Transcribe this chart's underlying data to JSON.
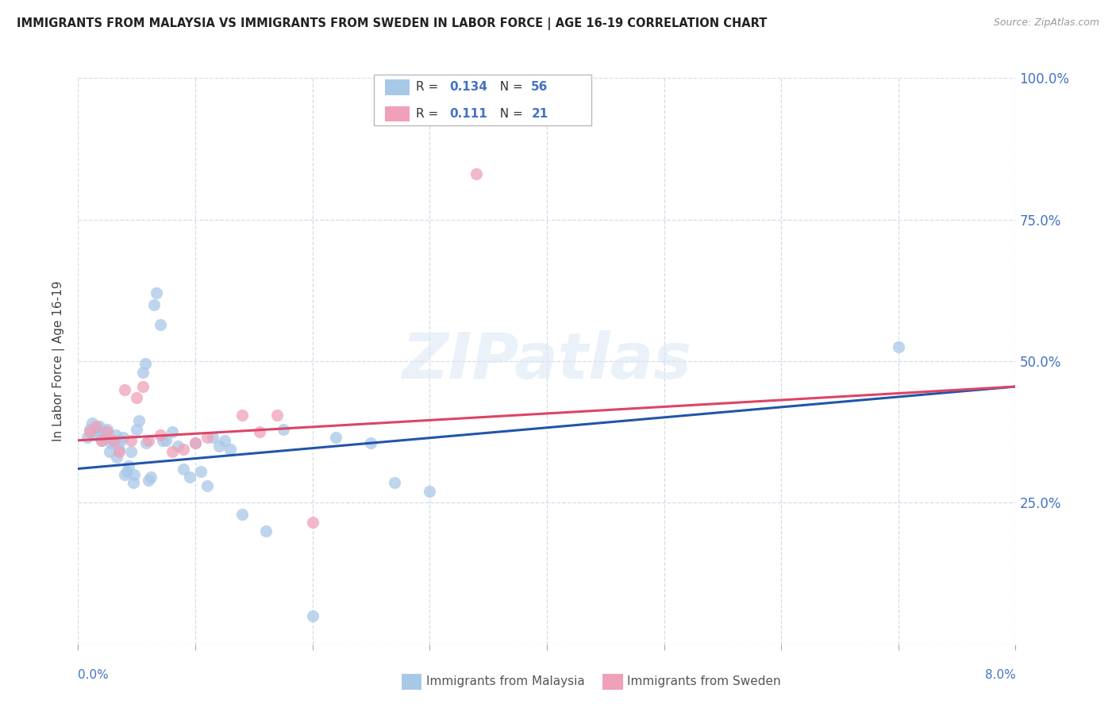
{
  "title": "IMMIGRANTS FROM MALAYSIA VS IMMIGRANTS FROM SWEDEN IN LABOR FORCE | AGE 16-19 CORRELATION CHART",
  "source": "Source: ZipAtlas.com",
  "ylabel": "In Labor Force | Age 16-19",
  "malaysia_color": "#a8c8e8",
  "sweden_color": "#f0a0b8",
  "malaysia_line_color": "#2255aa",
  "sweden_line_color": "#dd4466",
  "malaysia_label": "Immigrants from Malaysia",
  "sweden_label": "Immigrants from Sweden",
  "legend_r1": "0.134",
  "legend_n1": "56",
  "legend_r2": "0.111",
  "legend_n2": "21",
  "xlim": [
    0.0,
    0.08
  ],
  "ylim": [
    0.0,
    1.0
  ],
  "xtick_vals": [
    0.0,
    0.01,
    0.02,
    0.03,
    0.04,
    0.05,
    0.06,
    0.07,
    0.08
  ],
  "ytick_vals": [
    0.0,
    0.25,
    0.5,
    0.75,
    1.0
  ],
  "malaysia_scatter_x": [
    0.0008,
    0.001,
    0.0012,
    0.0015,
    0.0017,
    0.0018,
    0.002,
    0.0022,
    0.0023,
    0.0025,
    0.0027,
    0.0028,
    0.003,
    0.0032,
    0.0033,
    0.0035,
    0.0036,
    0.0038,
    0.004,
    0.0042,
    0.0043,
    0.0045,
    0.0047,
    0.0048,
    0.005,
    0.0052,
    0.0055,
    0.0057,
    0.0058,
    0.006,
    0.0062,
    0.0065,
    0.0067,
    0.007,
    0.0072,
    0.0075,
    0.008,
    0.0085,
    0.009,
    0.0095,
    0.01,
    0.0105,
    0.011,
    0.0115,
    0.012,
    0.0125,
    0.013,
    0.014,
    0.016,
    0.0175,
    0.02,
    0.022,
    0.025,
    0.027,
    0.03,
    0.07
  ],
  "malaysia_scatter_y": [
    0.365,
    0.38,
    0.39,
    0.37,
    0.375,
    0.385,
    0.36,
    0.365,
    0.375,
    0.38,
    0.34,
    0.355,
    0.36,
    0.37,
    0.33,
    0.345,
    0.36,
    0.365,
    0.3,
    0.305,
    0.315,
    0.34,
    0.285,
    0.3,
    0.38,
    0.395,
    0.48,
    0.495,
    0.355,
    0.29,
    0.295,
    0.6,
    0.62,
    0.565,
    0.36,
    0.36,
    0.375,
    0.35,
    0.31,
    0.295,
    0.355,
    0.305,
    0.28,
    0.365,
    0.35,
    0.36,
    0.345,
    0.23,
    0.2,
    0.38,
    0.05,
    0.365,
    0.355,
    0.285,
    0.27,
    0.525
  ],
  "sweden_scatter_x": [
    0.001,
    0.0015,
    0.002,
    0.0025,
    0.003,
    0.0035,
    0.004,
    0.0045,
    0.005,
    0.0055,
    0.006,
    0.007,
    0.008,
    0.009,
    0.01,
    0.011,
    0.014,
    0.0155,
    0.017,
    0.02,
    0.034
  ],
  "sweden_scatter_y": [
    0.375,
    0.385,
    0.36,
    0.375,
    0.36,
    0.34,
    0.45,
    0.36,
    0.435,
    0.455,
    0.36,
    0.37,
    0.34,
    0.345,
    0.355,
    0.365,
    0.405,
    0.375,
    0.405,
    0.215,
    0.83
  ],
  "malaysia_trend_x": [
    0.0,
    0.08
  ],
  "malaysia_trend_y": [
    0.31,
    0.455
  ],
  "sweden_trend_x": [
    0.0,
    0.08
  ],
  "sweden_trend_y": [
    0.36,
    0.455
  ]
}
